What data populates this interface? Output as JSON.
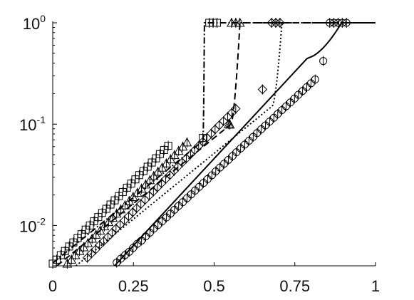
{
  "chart_data": {
    "type": "line",
    "title": "",
    "xlabel": "",
    "ylabel": "",
    "xlim": [
      0,
      1
    ],
    "ylim": [
      0.004,
      1
    ],
    "yscale": "log",
    "grid": false,
    "legend": "none",
    "x_ticks": [
      {
        "value": 0,
        "label": "0"
      },
      {
        "value": 0.25,
        "label": "0.25"
      },
      {
        "value": 0.5,
        "label": "0.5"
      },
      {
        "value": 0.75,
        "label": "0.75"
      },
      {
        "value": 1,
        "label": "1"
      }
    ],
    "y_ticks": [
      {
        "value": 0.01,
        "base": "10",
        "exp": "-2"
      },
      {
        "value": 0.1,
        "base": "10",
        "exp": "-1"
      },
      {
        "value": 1,
        "base": "10",
        "exp": "0"
      }
    ],
    "series": [
      {
        "line_style": "dash-dot",
        "marker": "square",
        "color": "#000000",
        "line": {
          "a": 0.0,
          "b": 0.00425,
          "k": 5.97,
          "xc": 0.47,
          "xs": 0.4655
        },
        "points": [
          [
            0.0,
            0.0042
          ],
          [
            0.012,
            0.0046
          ],
          [
            0.025,
            0.0051
          ],
          [
            0.038,
            0.0056
          ],
          [
            0.051,
            0.0062
          ],
          [
            0.064,
            0.0068
          ],
          [
            0.077,
            0.0075
          ],
          [
            0.089,
            0.0082
          ],
          [
            0.102,
            0.0091
          ],
          [
            0.115,
            0.01
          ],
          [
            0.128,
            0.011
          ],
          [
            0.141,
            0.0121
          ],
          [
            0.153,
            0.0133
          ],
          [
            0.166,
            0.0146
          ],
          [
            0.179,
            0.0161
          ],
          [
            0.192,
            0.0177
          ],
          [
            0.205,
            0.0195
          ],
          [
            0.217,
            0.0214
          ],
          [
            0.23,
            0.0236
          ],
          [
            0.243,
            0.0259
          ],
          [
            0.256,
            0.0285
          ],
          [
            0.268,
            0.0314
          ],
          [
            0.281,
            0.0345
          ],
          [
            0.294,
            0.038
          ],
          [
            0.307,
            0.0418
          ],
          [
            0.32,
            0.046
          ],
          [
            0.332,
            0.0506
          ],
          [
            0.345,
            0.0556
          ],
          [
            0.358,
            0.0612
          ],
          [
            0.465,
            0.073
          ],
          [
            0.485,
            1.0
          ],
          [
            0.497,
            1.0
          ],
          [
            0.509,
            1.0
          ]
        ]
      },
      {
        "line_style": "dashed",
        "marker": "triangle",
        "color": "#000000",
        "line": {
          "a": 0.0,
          "b": 0.0037,
          "k": 5.97,
          "xc": 0.58,
          "xs": 0.552
        },
        "points": [
          [
            0.045,
            0.0042
          ],
          [
            0.058,
            0.0046
          ],
          [
            0.07,
            0.0051
          ],
          [
            0.083,
            0.0056
          ],
          [
            0.096,
            0.0061
          ],
          [
            0.109,
            0.0067
          ],
          [
            0.122,
            0.0074
          ],
          [
            0.134,
            0.0081
          ],
          [
            0.147,
            0.0089
          ],
          [
            0.16,
            0.0098
          ],
          [
            0.173,
            0.0108
          ],
          [
            0.186,
            0.0119
          ],
          [
            0.198,
            0.0131
          ],
          [
            0.211,
            0.0144
          ],
          [
            0.224,
            0.0158
          ],
          [
            0.237,
            0.0174
          ],
          [
            0.249,
            0.0191
          ],
          [
            0.262,
            0.021
          ],
          [
            0.275,
            0.0231
          ],
          [
            0.288,
            0.0254
          ],
          [
            0.301,
            0.028
          ],
          [
            0.313,
            0.0308
          ],
          [
            0.326,
            0.0339
          ],
          [
            0.339,
            0.0372
          ],
          [
            0.352,
            0.041
          ],
          [
            0.365,
            0.045
          ],
          [
            0.377,
            0.0495
          ],
          [
            0.39,
            0.0545
          ],
          [
            0.403,
            0.06
          ],
          [
            0.416,
            0.066
          ],
          [
            0.549,
            0.099
          ],
          [
            0.545,
            0.1
          ],
          [
            0.554,
            1.0
          ],
          [
            0.567,
            1.0
          ],
          [
            0.58,
            1.0
          ]
        ]
      },
      {
        "line_style": "dotted",
        "marker": "diamond",
        "color": "#000000",
        "line": {
          "a": 0.0,
          "b": 0.0026,
          "k": 5.97,
          "xc": 0.71,
          "xs": 0.68
        },
        "points": [
          [
            0.107,
            0.0048
          ],
          [
            0.12,
            0.0053
          ],
          [
            0.133,
            0.0058
          ],
          [
            0.145,
            0.0064
          ],
          [
            0.158,
            0.007
          ],
          [
            0.171,
            0.0077
          ],
          [
            0.184,
            0.0085
          ],
          [
            0.196,
            0.0093
          ],
          [
            0.209,
            0.0102
          ],
          [
            0.222,
            0.0112
          ],
          [
            0.235,
            0.0123
          ],
          [
            0.248,
            0.0135
          ],
          [
            0.26,
            0.0148
          ],
          [
            0.273,
            0.0163
          ],
          [
            0.286,
            0.0179
          ],
          [
            0.299,
            0.0197
          ],
          [
            0.312,
            0.0216
          ],
          [
            0.324,
            0.0237
          ],
          [
            0.337,
            0.0261
          ],
          [
            0.35,
            0.0287
          ],
          [
            0.363,
            0.0315
          ],
          [
            0.376,
            0.0346
          ],
          [
            0.388,
            0.038
          ],
          [
            0.401,
            0.0418
          ],
          [
            0.414,
            0.0459
          ],
          [
            0.427,
            0.0504
          ],
          [
            0.44,
            0.0554
          ],
          [
            0.452,
            0.0609
          ],
          [
            0.465,
            0.0669
          ],
          [
            0.478,
            0.0735
          ],
          [
            0.491,
            0.0807
          ],
          [
            0.503,
            0.0887
          ],
          [
            0.516,
            0.0975
          ],
          [
            0.529,
            0.1071
          ],
          [
            0.542,
            0.1177
          ],
          [
            0.555,
            0.1293
          ],
          [
            0.567,
            0.1421
          ],
          [
            0.65,
            0.22
          ],
          [
            0.678,
            1.0
          ],
          [
            0.691,
            1.0
          ],
          [
            0.704,
            1.0
          ]
        ]
      },
      {
        "line_style": "solid",
        "marker": "circle",
        "color": "#000000",
        "line": {
          "a": 0.0,
          "b": 0.00088,
          "k": 7.9,
          "xc": 0.895,
          "xs": 0.79
        },
        "points": [
          [
            0.198,
            0.0043
          ],
          [
            0.211,
            0.0047
          ],
          [
            0.224,
            0.0051
          ],
          [
            0.237,
            0.0055
          ],
          [
            0.249,
            0.006
          ],
          [
            0.262,
            0.0066
          ],
          [
            0.275,
            0.0071
          ],
          [
            0.288,
            0.0078
          ],
          [
            0.301,
            0.0085
          ],
          [
            0.313,
            0.0093
          ],
          [
            0.326,
            0.0101
          ],
          [
            0.339,
            0.011
          ],
          [
            0.352,
            0.012
          ],
          [
            0.365,
            0.0131
          ],
          [
            0.377,
            0.0143
          ],
          [
            0.39,
            0.0156
          ],
          [
            0.403,
            0.017
          ],
          [
            0.416,
            0.0186
          ],
          [
            0.429,
            0.0203
          ],
          [
            0.441,
            0.0221
          ],
          [
            0.454,
            0.0241
          ],
          [
            0.467,
            0.0263
          ],
          [
            0.48,
            0.0287
          ],
          [
            0.493,
            0.0313
          ],
          [
            0.505,
            0.0342
          ],
          [
            0.518,
            0.0373
          ],
          [
            0.531,
            0.0407
          ],
          [
            0.544,
            0.0444
          ],
          [
            0.557,
            0.0484
          ],
          [
            0.569,
            0.0528
          ],
          [
            0.582,
            0.0576
          ],
          [
            0.595,
            0.0629
          ],
          [
            0.608,
            0.0686
          ],
          [
            0.621,
            0.0748
          ],
          [
            0.633,
            0.0816
          ],
          [
            0.646,
            0.089
          ],
          [
            0.659,
            0.0971
          ],
          [
            0.672,
            0.106
          ],
          [
            0.685,
            0.1156
          ],
          [
            0.697,
            0.1261
          ],
          [
            0.71,
            0.1376
          ],
          [
            0.723,
            0.1501
          ],
          [
            0.736,
            0.1637
          ],
          [
            0.749,
            0.1786
          ],
          [
            0.761,
            0.1949
          ],
          [
            0.774,
            0.2126
          ],
          [
            0.787,
            0.232
          ],
          [
            0.8,
            0.253
          ],
          [
            0.813,
            0.276
          ],
          [
            0.838,
            0.42
          ],
          [
            0.858,
            1.0
          ],
          [
            0.871,
            1.0
          ],
          [
            0.884,
            1.0
          ],
          [
            0.897,
            1.0
          ],
          [
            0.91,
            1.0
          ]
        ]
      }
    ]
  }
}
